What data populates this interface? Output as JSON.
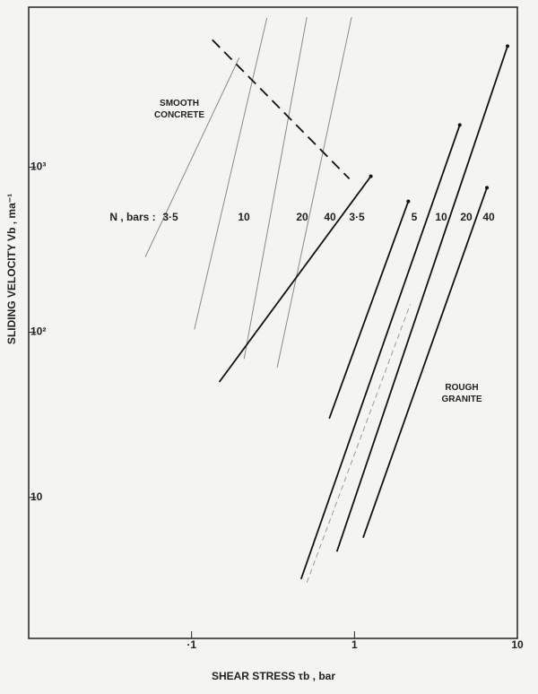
{
  "chart_data": {
    "type": "line",
    "xlabel": "SHEAR STRESS τb , bar",
    "ylabel": "SLIDING VELOCITY Vb , ma⁻¹",
    "xlog": true,
    "ylog": true,
    "xlim": [
      0.01,
      10
    ],
    "ylim": [
      1.4,
      9300
    ],
    "xticks": [
      {
        "value": 0.1,
        "label": "·1"
      },
      1,
      10
    ],
    "yticks": [
      10,
      {
        "value": 100,
        "label": "10²"
      },
      {
        "value": 1000,
        "label": "10³"
      }
    ],
    "annotations": [
      "SMOOTH CONCRETE",
      "ROUGH GRANITE",
      "N , bars :"
    ],
    "series": [
      {
        "name": "3·5",
        "color": "#8a8a8a",
        "style": "thin",
        "x": [
          0.052,
          0.196
        ],
        "values": [
          286,
          4600
        ]
      },
      {
        "name": "10",
        "color": "#8a8a8a",
        "style": "thin",
        "x": [
          0.104,
          0.29
        ],
        "values": [
          104,
          8000
        ]
      },
      {
        "name": "20",
        "color": "#8a8a8a",
        "style": "thin",
        "x": [
          0.21,
          0.51
        ],
        "values": [
          69,
          8100
        ]
      },
      {
        "name": "40",
        "color": "#8a8a8a",
        "style": "thin",
        "x": [
          0.335,
          0.96
        ],
        "values": [
          61,
          8100
        ]
      },
      {
        "name": "3·5",
        "color": "#111111",
        "style": "solid",
        "x": [
          0.148,
          1.26
        ],
        "values": [
          50,
          880
        ]
      },
      {
        "name": "5",
        "color": "#111111",
        "style": "solid",
        "x": [
          0.7,
          2.14
        ],
        "values": [
          30,
          620
        ]
      },
      {
        "name": "10",
        "color": "#111111",
        "style": "solid",
        "x": [
          0.47,
          4.43
        ],
        "values": [
          3.2,
          1800
        ]
      },
      {
        "name": "20",
        "color": "#111111",
        "style": "solid",
        "x": [
          0.78,
          8.7
        ],
        "values": [
          4.7,
          5400
        ]
      },
      {
        "name": "40",
        "color": "#111111",
        "style": "solid",
        "x": [
          1.13,
          6.5
        ],
        "values": [
          5.7,
          750
        ]
      },
      {
        "color": "#9a9a9a",
        "style": "dashed",
        "x": [
          0.51,
          2.2
        ],
        "values": [
          3.05,
          148
        ]
      },
      {
        "color": "#111111",
        "style": "bigdash",
        "x": [
          0.134,
          0.93
        ],
        "values": [
          5900,
          850
        ]
      }
    ]
  }
}
